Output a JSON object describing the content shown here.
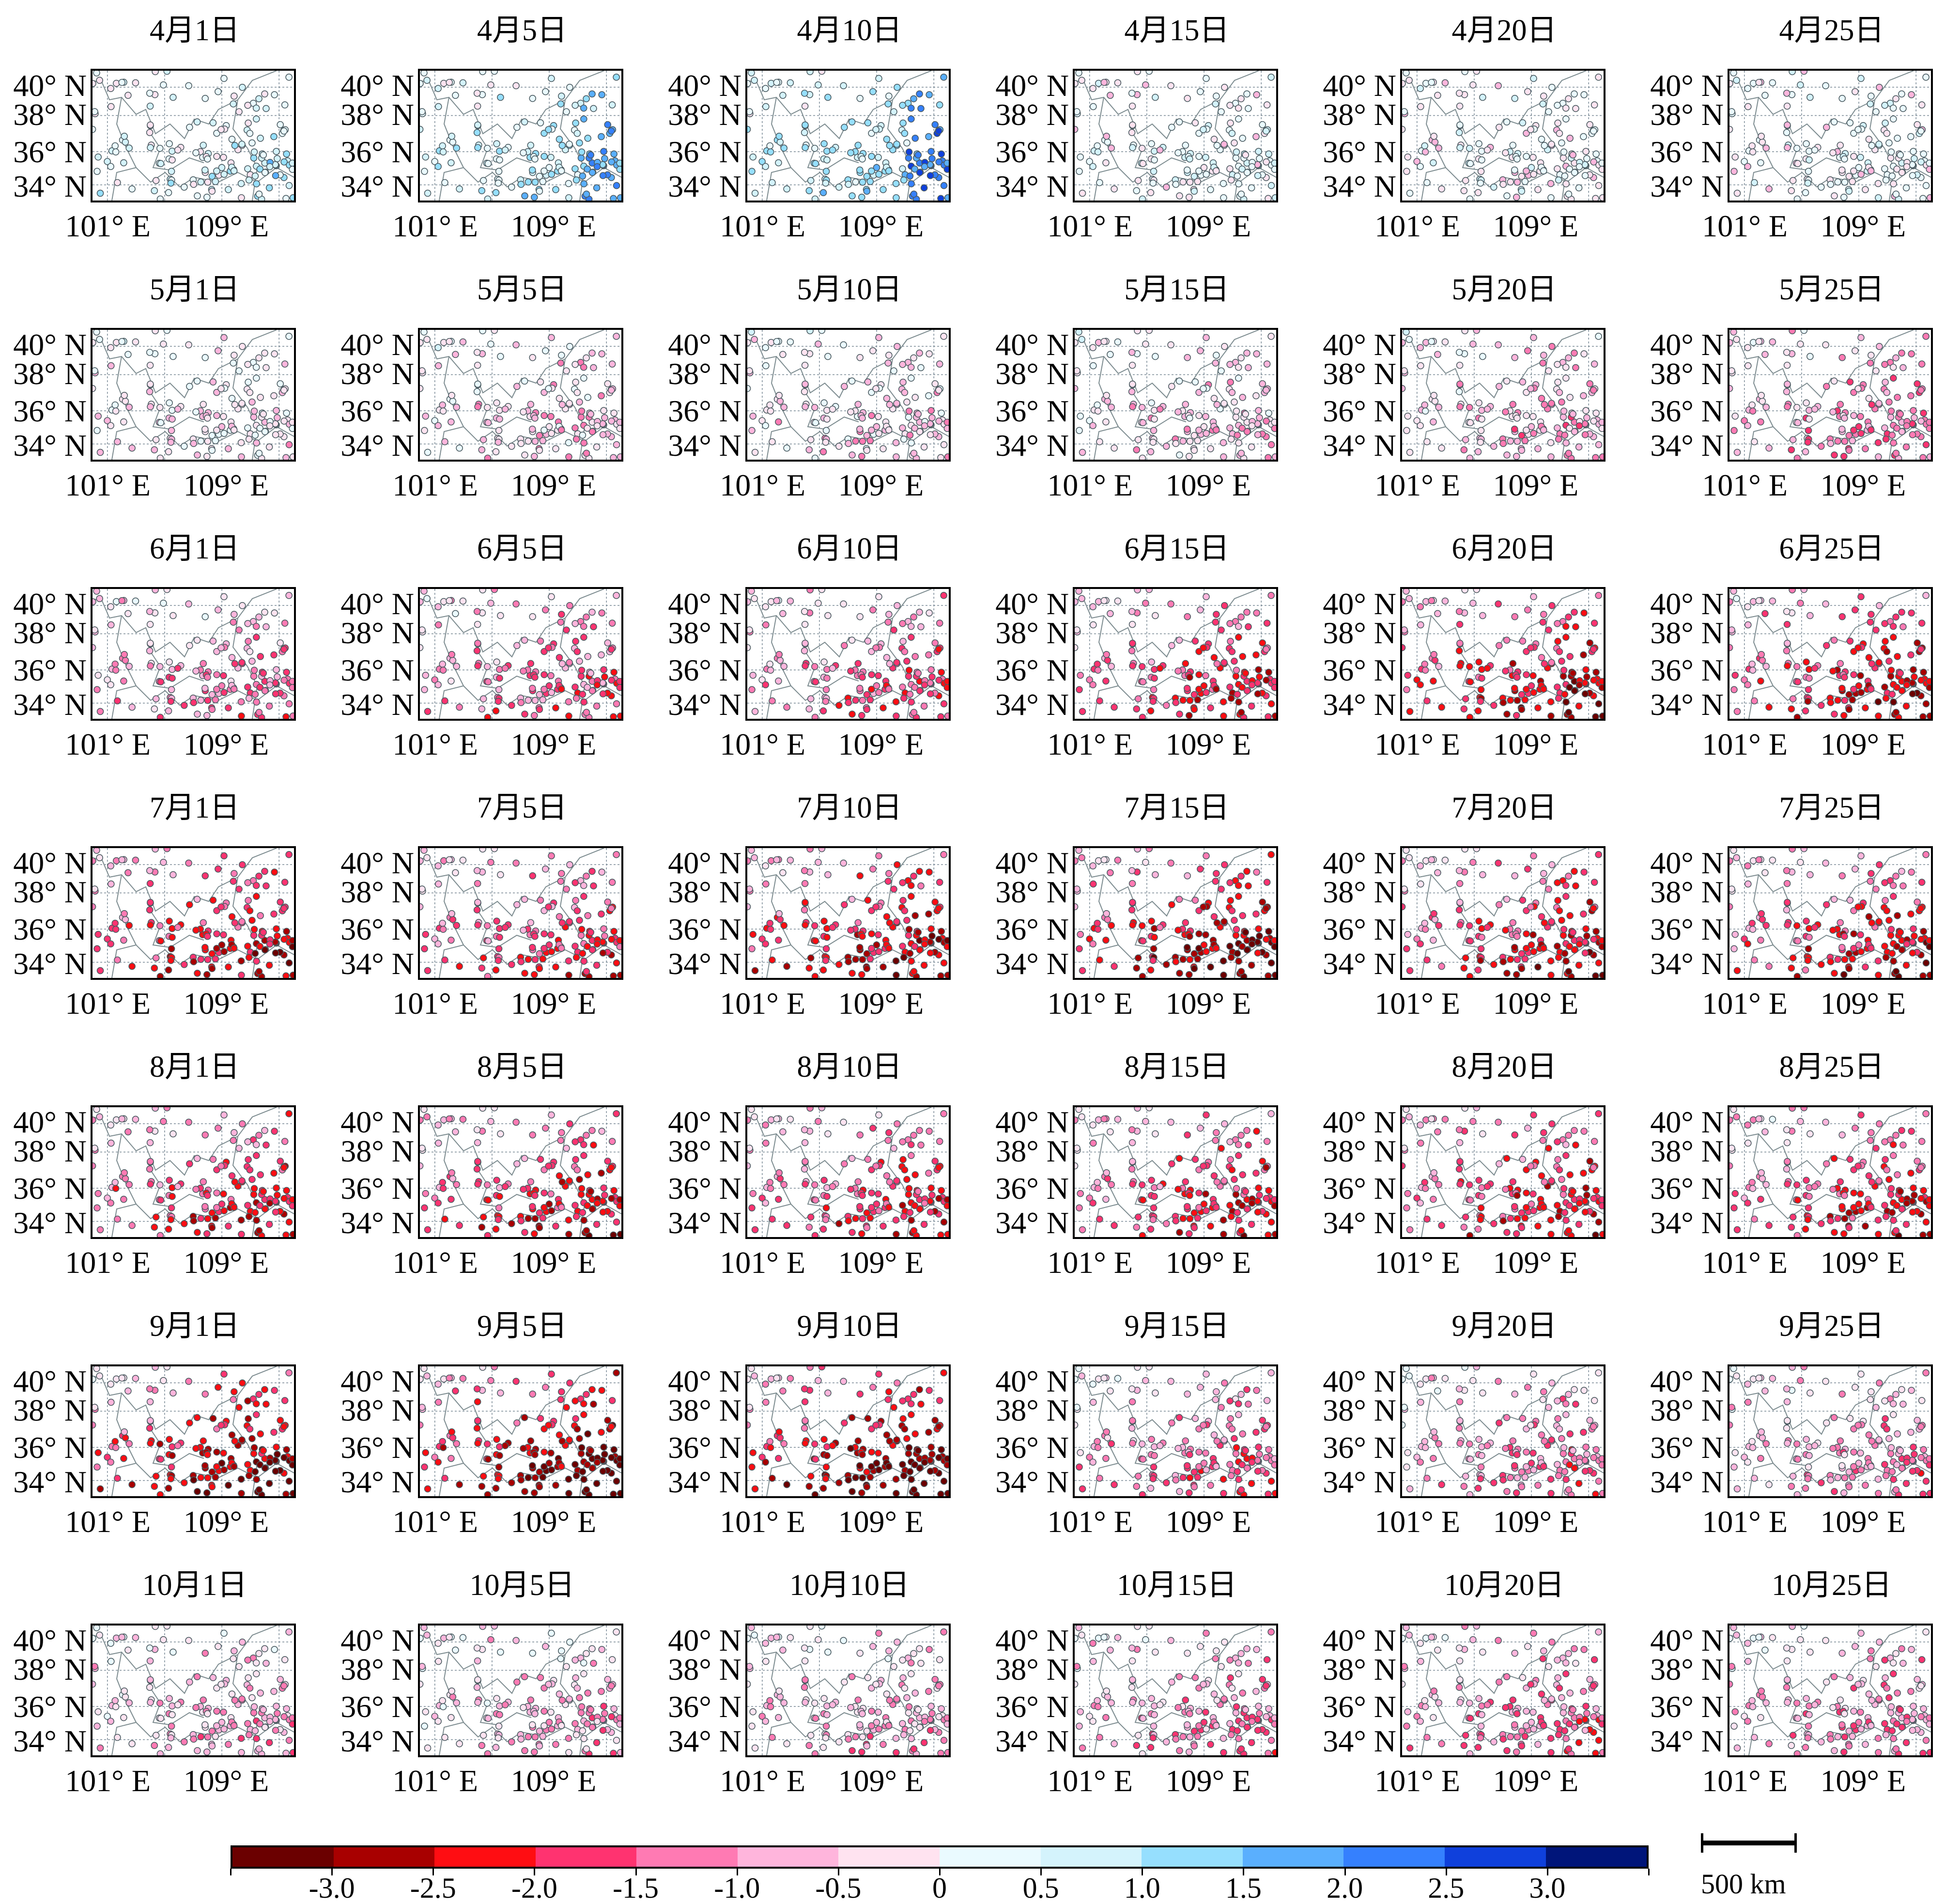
{
  "figure": {
    "lat_ticks": [
      "40° N",
      "38° N",
      "36° N",
      "34° N"
    ],
    "lon_ticks": [
      "101° E",
      "109° E"
    ],
    "panels": [
      {
        "title": "4月1日",
        "approx_mean_index": 0.3
      },
      {
        "title": "4月5日",
        "approx_mean_index": 0.6
      },
      {
        "title": "4月10日",
        "approx_mean_index": 0.8
      },
      {
        "title": "4月15日",
        "approx_mean_index": 0.1
      },
      {
        "title": "4月20日",
        "approx_mean_index": 0.0
      },
      {
        "title": "4月25日",
        "approx_mean_index": 0.0
      },
      {
        "title": "5月1日",
        "approx_mean_index": -0.2
      },
      {
        "title": "5月5日",
        "approx_mean_index": -0.4
      },
      {
        "title": "5月10日",
        "approx_mean_index": -0.3
      },
      {
        "title": "5月15日",
        "approx_mean_index": -0.4
      },
      {
        "title": "5月20日",
        "approx_mean_index": -0.6
      },
      {
        "title": "5月25日",
        "approx_mean_index": -0.8
      },
      {
        "title": "6月1日",
        "approx_mean_index": -0.8
      },
      {
        "title": "6月5日",
        "approx_mean_index": -1.0
      },
      {
        "title": "6月10日",
        "approx_mean_index": -1.0
      },
      {
        "title": "6月15日",
        "approx_mean_index": -1.4
      },
      {
        "title": "6月20日",
        "approx_mean_index": -1.6
      },
      {
        "title": "6月25日",
        "approx_mean_index": -1.6
      },
      {
        "title": "7月1日",
        "approx_mean_index": -1.5
      },
      {
        "title": "7月5日",
        "approx_mean_index": -1.2
      },
      {
        "title": "7月10日",
        "approx_mean_index": -1.6
      },
      {
        "title": "7月15日",
        "approx_mean_index": -1.8
      },
      {
        "title": "7月20日",
        "approx_mean_index": -1.5
      },
      {
        "title": "7月25日",
        "approx_mean_index": -1.5
      },
      {
        "title": "8月1日",
        "approx_mean_index": -1.4
      },
      {
        "title": "8月5日",
        "approx_mean_index": -1.4
      },
      {
        "title": "8月10日",
        "approx_mean_index": -1.3
      },
      {
        "title": "8月15日",
        "approx_mean_index": -1.4
      },
      {
        "title": "8月20日",
        "approx_mean_index": -1.4
      },
      {
        "title": "8月25日",
        "approx_mean_index": -1.4
      },
      {
        "title": "9月1日",
        "approx_mean_index": -1.8
      },
      {
        "title": "9月5日",
        "approx_mean_index": -2.0
      },
      {
        "title": "9月10日",
        "approx_mean_index": -2.0
      },
      {
        "title": "9月15日",
        "approx_mean_index": -1.0
      },
      {
        "title": "9月20日",
        "approx_mean_index": -0.9
      },
      {
        "title": "9月25日",
        "approx_mean_index": -0.8
      },
      {
        "title": "10月1日",
        "approx_mean_index": -0.6
      },
      {
        "title": "10月5日",
        "approx_mean_index": -0.6
      },
      {
        "title": "10月10日",
        "approx_mean_index": -0.6
      },
      {
        "title": "10月15日",
        "approx_mean_index": -0.8
      },
      {
        "title": "10月20日",
        "approx_mean_index": -0.9
      },
      {
        "title": "10月25日",
        "approx_mean_index": -0.8
      }
    ]
  },
  "colorbar": {
    "range": [
      -3.5,
      3.5
    ],
    "bin_width": 0.5,
    "labels": [
      "-3.0",
      "-2.5",
      "-2.0",
      "-1.5",
      "-1.0",
      "-0.5",
      "0",
      "0.5",
      "1.0",
      "1.5",
      "2.0",
      "2.5",
      "3.0"
    ],
    "label_values": [
      -3.0,
      -2.5,
      -2.0,
      -1.5,
      -1.0,
      -0.5,
      0,
      0.5,
      1.0,
      1.5,
      2.0,
      2.5,
      3.0
    ],
    "colors": [
      "#6b0000",
      "#a80000",
      "#ff0d12",
      "#ff3370",
      "#ff7ab3",
      "#ffb5dc",
      "#ffe3f0",
      "#eafaff",
      "#d4f3fc",
      "#96dffe",
      "#5aaffe",
      "#3580fe",
      "#0f40dc",
      "#00157a"
    ]
  },
  "scale_bar": {
    "label": "500 km"
  },
  "style": {
    "marker_edge": "#4a5a60",
    "boundary": "#7d8c90",
    "grid": "#7a8a96"
  }
}
